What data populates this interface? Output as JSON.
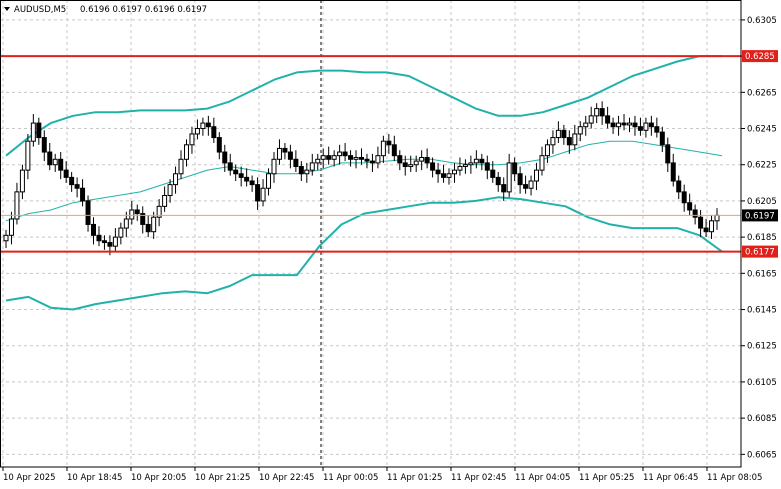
{
  "header": {
    "symbol": "AUDUSD,M5",
    "ohlc": "0.6196 0.6197 0.6196 0.6197"
  },
  "colors": {
    "grid": "#c8c8c8",
    "candle": "#000000",
    "band": "#20b2aa",
    "level": "#e0201a",
    "price_line": "#e8a070",
    "price_tag_bg": "#000000",
    "level_tag_bg": "#e0201a"
  },
  "chart_data": {
    "type": "candlestick",
    "ylim": [
      0.6058,
      0.6316
    ],
    "y_ticks": [
      "0.6305",
      "0.6285",
      "0.6265",
      "0.6245",
      "0.6225",
      "0.6205",
      "0.6185",
      "0.6165",
      "0.6145",
      "0.6125",
      "0.6105",
      "0.6085",
      "0.6065"
    ],
    "x_ticks": [
      "10 Apr 2025",
      "10 Apr 18:45",
      "10 Apr 20:05",
      "10 Apr 21:25",
      "10 Apr 22:45",
      "11 Apr 00:05",
      "11 Apr 01:25",
      "11 Apr 02:45",
      "11 Apr 04:05",
      "11 Apr 05:25",
      "11 Apr 06:45",
      "11 Apr 08:05"
    ],
    "session_divider": "11 Apr 00:05",
    "levels": [
      {
        "value": 0.6285,
        "label": "0.6285"
      },
      {
        "value": 0.6177,
        "label": "0.6177"
      }
    ],
    "current_price": {
      "value": 0.6197,
      "label": "0.6197"
    },
    "closes": [
      0.6186,
      0.6195,
      0.621,
      0.6222,
      0.6238,
      0.6248,
      0.624,
      0.6232,
      0.6225,
      0.6228,
      0.6222,
      0.6218,
      0.6214,
      0.6212,
      0.6205,
      0.6192,
      0.6186,
      0.6183,
      0.6182,
      0.618,
      0.6185,
      0.619,
      0.6195,
      0.62,
      0.6198,
      0.6192,
      0.6188,
      0.6196,
      0.6202,
      0.6208,
      0.6214,
      0.622,
      0.6228,
      0.6236,
      0.6242,
      0.6245,
      0.6248,
      0.6246,
      0.624,
      0.6232,
      0.6226,
      0.6222,
      0.622,
      0.6218,
      0.6216,
      0.6214,
      0.6205,
      0.6212,
      0.622,
      0.6228,
      0.6234,
      0.6232,
      0.6228,
      0.6224,
      0.622,
      0.6222,
      0.6226,
      0.6228,
      0.623,
      0.6228,
      0.623,
      0.6232,
      0.623,
      0.6228,
      0.6229,
      0.6228,
      0.6227,
      0.6226,
      0.623,
      0.6238,
      0.6236,
      0.623,
      0.6226,
      0.6224,
      0.6225,
      0.6227,
      0.6229,
      0.6226,
      0.6222,
      0.622,
      0.6218,
      0.622,
      0.6222,
      0.6224,
      0.6225,
      0.6226,
      0.6228,
      0.6226,
      0.6222,
      0.6218,
      0.6214,
      0.621,
      0.6226,
      0.622,
      0.6214,
      0.6212,
      0.6216,
      0.6222,
      0.623,
      0.6236,
      0.624,
      0.6244,
      0.624,
      0.6236,
      0.6242,
      0.6246,
      0.6248,
      0.6252,
      0.6256,
      0.6252,
      0.6248,
      0.6246,
      0.6248,
      0.6247,
      0.6248,
      0.6246,
      0.6244,
      0.6248,
      0.6246,
      0.6243,
      0.6236,
      0.6226,
      0.6216,
      0.621,
      0.6204,
      0.62,
      0.6196,
      0.619,
      0.6188,
      0.6194,
      0.6197
    ],
    "bollinger": {
      "upper": [
        0.623,
        0.624,
        0.6248,
        0.6252,
        0.6254,
        0.6254,
        0.6255,
        0.6255,
        0.6255,
        0.6256,
        0.626,
        0.6266,
        0.6272,
        0.6276,
        0.6277,
        0.6277,
        0.6276,
        0.6276,
        0.6274,
        0.6268,
        0.6262,
        0.6256,
        0.6252,
        0.6252,
        0.6254,
        0.6258,
        0.6262,
        0.6268,
        0.6274,
        0.6278,
        0.6282,
        0.6285,
        0.6285
      ],
      "middle": [
        0.6194,
        0.6198,
        0.62,
        0.6204,
        0.6206,
        0.6208,
        0.621,
        0.6214,
        0.6218,
        0.6222,
        0.6224,
        0.6222,
        0.622,
        0.622,
        0.6222,
        0.6226,
        0.6226,
        0.6227,
        0.6228,
        0.6228,
        0.6226,
        0.6225,
        0.6225,
        0.6226,
        0.6228,
        0.6232,
        0.6236,
        0.6238,
        0.6238,
        0.6236,
        0.6234,
        0.6232,
        0.623
      ],
      "lower": [
        0.615,
        0.6152,
        0.6146,
        0.6145,
        0.6148,
        0.615,
        0.6152,
        0.6154,
        0.6155,
        0.6154,
        0.6158,
        0.6164,
        0.6164,
        0.6164,
        0.618,
        0.6192,
        0.6198,
        0.62,
        0.6202,
        0.6204,
        0.6204,
        0.6205,
        0.6207,
        0.6206,
        0.6204,
        0.6202,
        0.6196,
        0.6192,
        0.619,
        0.619,
        0.619,
        0.6186,
        0.6177
      ]
    }
  }
}
